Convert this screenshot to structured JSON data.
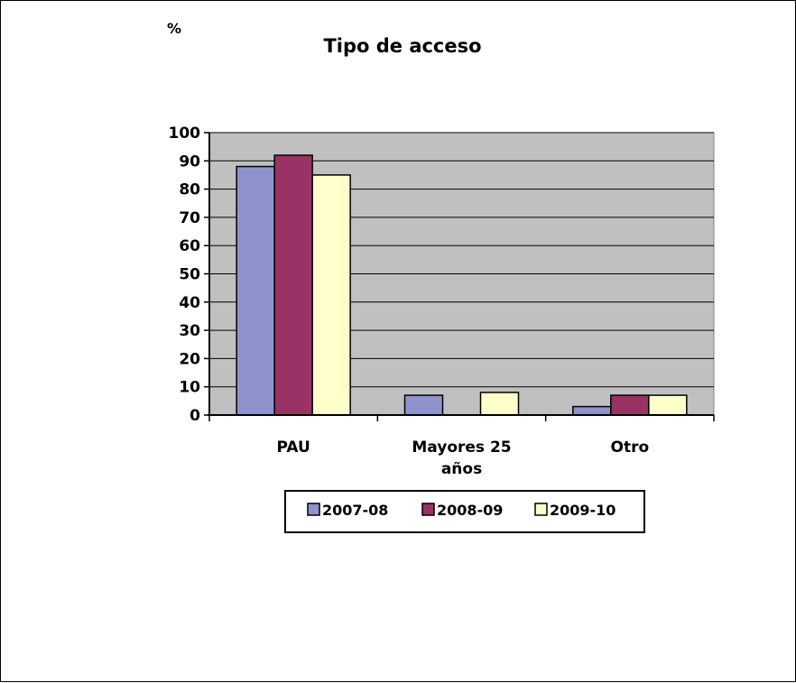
{
  "chart_data": {
    "type": "bar",
    "title": "Tipo de acceso",
    "unit_label": "%",
    "categories": [
      [
        "PAU"
      ],
      [
        "Mayores 25",
        "años"
      ],
      [
        "Otro"
      ]
    ],
    "series": [
      {
        "name": "2007-08",
        "color": "#8f93cc",
        "values": [
          88,
          7,
          3
        ]
      },
      {
        "name": "2008-09",
        "color": "#993366",
        "values": [
          92,
          0,
          7
        ]
      },
      {
        "name": "2009-10",
        "color": "#ffffcc",
        "values": [
          85,
          8,
          7
        ]
      }
    ],
    "ylim": [
      0,
      100
    ],
    "yticks": [
      0,
      10,
      20,
      30,
      40,
      50,
      60,
      70,
      80,
      90,
      100
    ],
    "plot_background": "#c0c0c0",
    "grid": true,
    "legend_position": "bottom"
  }
}
